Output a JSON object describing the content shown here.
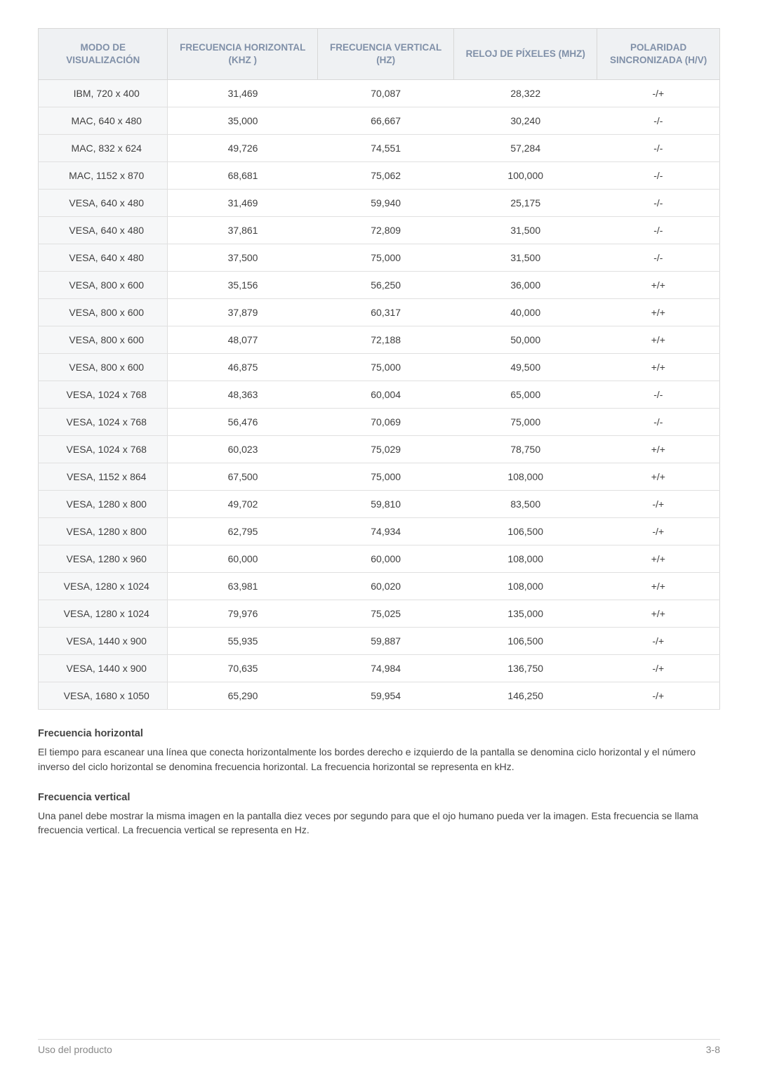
{
  "table": {
    "columns": [
      "MODO DE VISUALIZACIÓN",
      "FRECUENCIA HORIZONTAL (KHZ )",
      "FRECUENCIA VERTICAL (HZ)",
      "RELOJ DE PÍXELES (MHZ)",
      "POLARIDAD SINCRONIZADA (H/V)"
    ],
    "col_widths": [
      "19%",
      "22%",
      "20%",
      "21%",
      "18%"
    ],
    "header_bg": "#eff1f3",
    "header_text_color": "#8090a8",
    "border_color": "#d8d8d8",
    "row_border": "#e0e0e0",
    "firstcol_bg": "#f6f7f8",
    "cell_text_color": "#3f3f3f",
    "font_size": 14,
    "header_font_size": 13.5,
    "rows": [
      [
        "IBM, 720 x 400",
        "31,469",
        "70,087",
        "28,322",
        "-/+"
      ],
      [
        "MAC, 640 x 480",
        "35,000",
        "66,667",
        "30,240",
        "-/-"
      ],
      [
        "MAC, 832 x 624",
        "49,726",
        "74,551",
        "57,284",
        "-/-"
      ],
      [
        "MAC, 1152 x 870",
        "68,681",
        "75,062",
        "100,000",
        "-/-"
      ],
      [
        "VESA, 640 x 480",
        "31,469",
        "59,940",
        "25,175",
        "-/-"
      ],
      [
        "VESA, 640 x 480",
        "37,861",
        "72,809",
        "31,500",
        "-/-"
      ],
      [
        "VESA, 640 x 480",
        "37,500",
        "75,000",
        "31,500",
        "-/-"
      ],
      [
        "VESA, 800 x 600",
        "35,156",
        "56,250",
        "36,000",
        "+/+"
      ],
      [
        "VESA, 800 x 600",
        "37,879",
        "60,317",
        "40,000",
        "+/+"
      ],
      [
        "VESA, 800 x 600",
        "48,077",
        "72,188",
        "50,000",
        "+/+"
      ],
      [
        "VESA, 800 x 600",
        "46,875",
        "75,000",
        "49,500",
        "+/+"
      ],
      [
        "VESA, 1024 x 768",
        "48,363",
        "60,004",
        "65,000",
        "-/-"
      ],
      [
        "VESA, 1024 x 768",
        "56,476",
        "70,069",
        "75,000",
        "-/-"
      ],
      [
        "VESA, 1024 x 768",
        "60,023",
        "75,029",
        "78,750",
        "+/+"
      ],
      [
        "VESA, 1152 x 864",
        "67,500",
        "75,000",
        "108,000",
        "+/+"
      ],
      [
        "VESA, 1280 x 800",
        "49,702",
        "59,810",
        "83,500",
        "-/+"
      ],
      [
        "VESA, 1280 x 800",
        "62,795",
        "74,934",
        "106,500",
        "-/+"
      ],
      [
        "VESA, 1280 x 960",
        "60,000",
        "60,000",
        "108,000",
        "+/+"
      ],
      [
        "VESA, 1280 x 1024",
        "63,981",
        "60,020",
        "108,000",
        "+/+"
      ],
      [
        "VESA, 1280 x 1024",
        "79,976",
        "75,025",
        "135,000",
        "+/+"
      ],
      [
        "VESA, 1440 x 900",
        "55,935",
        "59,887",
        "106,500",
        "-/+"
      ],
      [
        "VESA, 1440 x 900",
        "70,635",
        "74,984",
        "136,750",
        "-/+"
      ],
      [
        "VESA, 1680 x 1050",
        "65,290",
        "59,954",
        "146,250",
        "-/+"
      ]
    ]
  },
  "sections": {
    "h1_title": "Frecuencia horizontal",
    "h1_text": "El tiempo para escanear una línea que conecta horizontalmente los bordes derecho e izquierdo de la pantalla se denomina ciclo horizontal y el número inverso del ciclo horizontal se denomina frecuencia horizontal. La frecuencia horizontal se representa en kHz.",
    "v1_title": "Frecuencia vertical",
    "v1_text": "Una panel debe mostrar la misma imagen en la pantalla diez veces por segundo para que el ojo humano pueda ver la imagen. Esta frecuencia se llama frecuencia vertical. La frecuencia vertical se representa en Hz."
  },
  "footer": {
    "left": "Uso del producto",
    "right": "3-8"
  }
}
